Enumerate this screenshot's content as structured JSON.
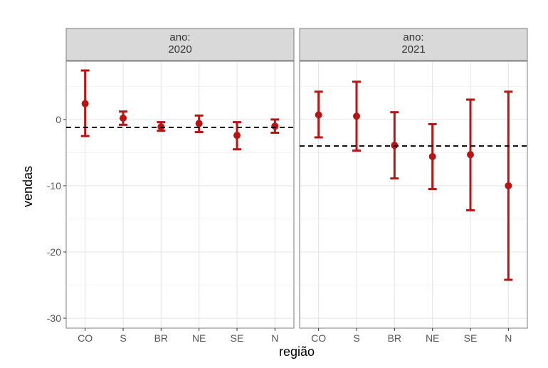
{
  "chart_data": {
    "type": "errorbar",
    "xlabel": "região",
    "ylabel": "vendas",
    "ylim": [
      -31.5,
      8.8
    ],
    "yticks": [
      0,
      -10,
      -20,
      -30
    ],
    "categories": [
      "CO",
      "S",
      "BR",
      "NE",
      "SE",
      "N"
    ],
    "grid": true,
    "colors": {
      "point": "#b81414",
      "reference_line": "#000000",
      "strip_bg": "#d9d9d9"
    },
    "panels": [
      {
        "strip": [
          "ano:",
          "2020"
        ],
        "reference_line": -1.2,
        "points": [
          {
            "x": "CO",
            "y": 2.4,
            "lower": -2.5,
            "upper": 7.4
          },
          {
            "x": "S",
            "y": 0.2,
            "lower": -0.8,
            "upper": 1.2
          },
          {
            "x": "BR",
            "y": -1.1,
            "lower": -1.7,
            "upper": -0.4
          },
          {
            "x": "NE",
            "y": -0.6,
            "lower": -1.9,
            "upper": 0.6
          },
          {
            "x": "SE",
            "y": -2.4,
            "lower": -4.5,
            "upper": -0.4
          },
          {
            "x": "N",
            "y": -1.0,
            "lower": -2.0,
            "upper": 0.0
          }
        ]
      },
      {
        "strip": [
          "ano:",
          "2021"
        ],
        "reference_line": -4.0,
        "points": [
          {
            "x": "CO",
            "y": 0.7,
            "lower": -2.7,
            "upper": 4.2
          },
          {
            "x": "S",
            "y": 0.5,
            "lower": -4.7,
            "upper": 5.7
          },
          {
            "x": "BR",
            "y": -3.9,
            "lower": -8.9,
            "upper": 1.1
          },
          {
            "x": "NE",
            "y": -5.6,
            "lower": -10.5,
            "upper": -0.7
          },
          {
            "x": "SE",
            "y": -5.3,
            "lower": -13.7,
            "upper": 3.0
          },
          {
            "x": "N",
            "y": -10.0,
            "lower": -24.2,
            "upper": 4.2
          }
        ]
      }
    ]
  }
}
